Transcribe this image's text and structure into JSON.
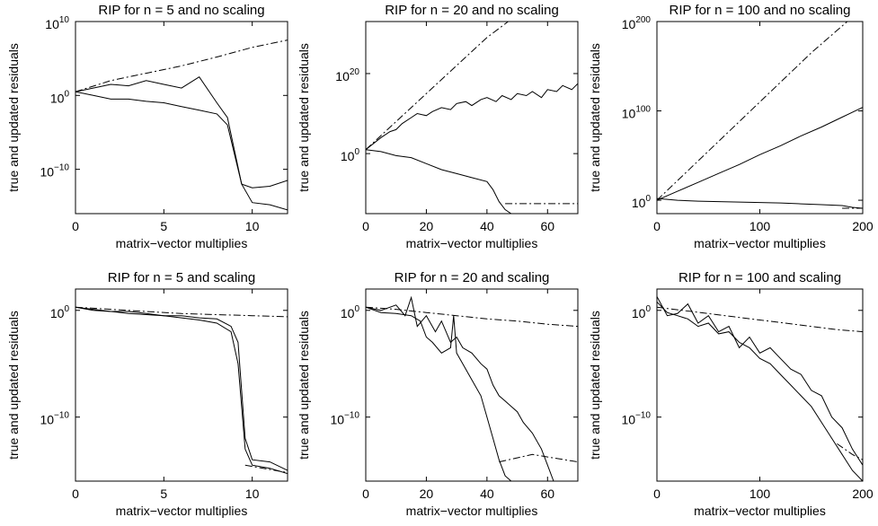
{
  "chart_data": [
    {
      "type": "line",
      "title": "RIP for n = 5 and no scaling",
      "xlabel": "matrix−vector multiplies",
      "ylabel": "true and updated residuals",
      "y_scale": "log",
      "xlim": [
        0,
        12
      ],
      "ylim_exp": [
        -16,
        10
      ],
      "x_ticks": [
        {
          "v": 0,
          "label": "0"
        },
        {
          "v": 5,
          "label": "5"
        },
        {
          "v": 10,
          "label": "10"
        }
      ],
      "y_ticks": [
        {
          "e": -10,
          "base": "10",
          "sup": "−10"
        },
        {
          "e": 0,
          "base": "10",
          "sup": "0"
        },
        {
          "e": 10,
          "base": "10",
          "sup": "10"
        }
      ],
      "grid": false,
      "series": [
        {
          "style": "dashdot",
          "x": [
            0,
            2,
            4,
            6,
            8,
            10,
            12
          ],
          "log10_y": [
            0.5,
            2.0,
            3.0,
            4.0,
            5.2,
            6.5,
            7.5
          ]
        },
        {
          "style": "solid",
          "x": [
            0,
            1,
            2,
            3,
            4,
            5,
            6,
            7,
            8,
            8.6,
            9.4,
            10,
            11,
            12
          ],
          "log10_y": [
            0.5,
            1.0,
            1.5,
            1.3,
            2.0,
            1.5,
            1.0,
            2.5,
            -1.0,
            -3.0,
            -12.0,
            -12.5,
            -12.3,
            -11.5
          ]
        },
        {
          "style": "solid",
          "x": [
            0,
            1,
            2,
            3,
            4,
            5,
            6,
            7,
            8,
            8.6,
            9.4,
            10,
            11,
            12
          ],
          "log10_y": [
            0.5,
            0.0,
            -0.5,
            -0.5,
            -0.8,
            -1.0,
            -1.5,
            -2.0,
            -2.5,
            -4.0,
            -12.0,
            -14.5,
            -14.8,
            -15.5
          ]
        }
      ]
    },
    {
      "type": "line",
      "title": "RIP for n = 20 and no scaling",
      "xlabel": "matrix−vector multiplies",
      "ylabel": "true and updated residuals",
      "y_scale": "log",
      "xlim": [
        0,
        70
      ],
      "ylim_exp": [
        -15,
        33
      ],
      "x_ticks": [
        {
          "v": 0,
          "label": "0"
        },
        {
          "v": 20,
          "label": "20"
        },
        {
          "v": 40,
          "label": "40"
        },
        {
          "v": 60,
          "label": "60"
        }
      ],
      "y_ticks": [
        {
          "e": 0,
          "base": "10",
          "sup": "0"
        },
        {
          "e": 20,
          "base": "10",
          "sup": "20"
        }
      ],
      "grid": false,
      "series": [
        {
          "style": "dashdot",
          "x": [
            0,
            10,
            20,
            30,
            40,
            47
          ],
          "log10_y": [
            1.0,
            8.0,
            15.0,
            22.0,
            29.0,
            33.0
          ]
        },
        {
          "style": "solid",
          "x": [
            0,
            5,
            8,
            10,
            12,
            15,
            17,
            20,
            22,
            25,
            28,
            30,
            33,
            35,
            38,
            40,
            43,
            45,
            48,
            50,
            53,
            55,
            58,
            60,
            63,
            65,
            68,
            70
          ],
          "log10_y": [
            1.0,
            4.0,
            5.5,
            6.0,
            7.5,
            9.0,
            10.0,
            9.5,
            10.5,
            11.5,
            11.0,
            12.5,
            13.0,
            12.0,
            13.5,
            14.0,
            13.0,
            14.5,
            13.5,
            15.0,
            14.5,
            15.5,
            14.0,
            16.0,
            15.5,
            17.0,
            16.0,
            17.5
          ]
        },
        {
          "style": "solid",
          "x": [
            0,
            5,
            10,
            15,
            20,
            25,
            30,
            35,
            40,
            42,
            44,
            46,
            48
          ],
          "log10_y": [
            1.0,
            0.5,
            -0.5,
            -1.0,
            -2.5,
            -4.0,
            -5.0,
            -6.0,
            -7.0,
            -9.0,
            -12.0,
            -14.0,
            -15.0
          ]
        },
        {
          "style": "dashdot",
          "x": [
            46,
            70
          ],
          "log10_y": [
            -12.5,
            -12.5
          ]
        }
      ]
    },
    {
      "type": "line",
      "title": "RIP for n = 100 and no scaling",
      "xlabel": "matrix−vector multiplies",
      "ylabel": "true and updated residuals",
      "y_scale": "log",
      "xlim": [
        0,
        200
      ],
      "ylim_exp": [
        -15,
        200
      ],
      "x_ticks": [
        {
          "v": 0,
          "label": "0"
        },
        {
          "v": 100,
          "label": "100"
        },
        {
          "v": 200,
          "label": "200"
        }
      ],
      "y_ticks": [
        {
          "e": 0,
          "base": "10",
          "sup": "0"
        },
        {
          "e": 100,
          "base": "10",
          "sup": "100"
        },
        {
          "e": 200,
          "base": "10",
          "sup": "200"
        }
      ],
      "grid": false,
      "series": [
        {
          "style": "dashdot",
          "x": [
            0,
            50,
            100,
            150,
            185
          ],
          "log10_y": [
            0,
            55,
            110,
            165,
            200
          ]
        },
        {
          "style": "solid",
          "x": [
            0,
            20,
            40,
            60,
            80,
            100,
            120,
            140,
            160,
            180,
            200
          ],
          "log10_y": [
            0,
            10,
            20,
            30,
            40,
            51,
            61,
            72,
            82,
            93,
            104
          ]
        },
        {
          "style": "solid",
          "x": [
            0,
            20,
            40,
            60,
            80,
            100,
            120,
            140,
            160,
            180,
            190,
            200
          ],
          "log10_y": [
            2,
            0,
            -1,
            -1.5,
            -2,
            -2.5,
            -3,
            -4,
            -5,
            -6,
            -8,
            -9
          ]
        },
        {
          "style": "dashdot",
          "x": [
            180,
            200
          ],
          "log10_y": [
            -9,
            -9
          ]
        }
      ]
    },
    {
      "type": "line",
      "title": "RIP for n = 5 and scaling",
      "xlabel": "matrix−vector multiplies",
      "ylabel": "true and updated residuals",
      "y_scale": "log",
      "xlim": [
        0,
        12
      ],
      "ylim_exp": [
        -16,
        2
      ],
      "x_ticks": [
        {
          "v": 0,
          "label": "0"
        },
        {
          "v": 5,
          "label": "5"
        },
        {
          "v": 10,
          "label": "10"
        }
      ],
      "y_ticks": [
        {
          "e": -10,
          "base": "10",
          "sup": "−10"
        },
        {
          "e": 0,
          "base": "10",
          "sup": "0"
        }
      ],
      "grid": false,
      "series": [
        {
          "style": "dashdot",
          "x": [
            0,
            2,
            4,
            6,
            8,
            10,
            12
          ],
          "log10_y": [
            0.3,
            0.1,
            -0.1,
            -0.3,
            -0.4,
            -0.5,
            -0.6
          ]
        },
        {
          "style": "solid",
          "x": [
            0,
            1,
            2,
            3,
            4,
            5,
            6,
            7,
            8,
            8.8,
            9.2,
            9.6,
            10,
            11,
            12
          ],
          "log10_y": [
            0.3,
            0.1,
            -0.1,
            -0.1,
            -0.3,
            -0.5,
            -0.5,
            -0.7,
            -0.8,
            -1.5,
            -3.0,
            -12.0,
            -14.0,
            -14.2,
            -15.0
          ]
        },
        {
          "style": "solid",
          "x": [
            0,
            1,
            2,
            3,
            4,
            5,
            6,
            7,
            8,
            8.8,
            9.2,
            9.6,
            10,
            11,
            12
          ],
          "log10_y": [
            0.3,
            0.0,
            -0.1,
            -0.3,
            -0.4,
            -0.5,
            -0.7,
            -0.9,
            -1.2,
            -2.0,
            -5.0,
            -13.0,
            -14.5,
            -14.8,
            -15.3
          ]
        },
        {
          "style": "dashdot",
          "x": [
            9.6,
            12
          ],
          "log10_y": [
            -14.5,
            -15.2
          ]
        }
      ]
    },
    {
      "type": "line",
      "title": "RIP for n = 20 and scaling",
      "xlabel": "matrix−vector multiplies",
      "ylabel": "true and updated residuals",
      "y_scale": "log",
      "xlim": [
        0,
        70
      ],
      "ylim_exp": [
        -16,
        2
      ],
      "x_ticks": [
        {
          "v": 0,
          "label": "0"
        },
        {
          "v": 20,
          "label": "20"
        },
        {
          "v": 40,
          "label": "40"
        },
        {
          "v": 60,
          "label": "60"
        }
      ],
      "y_ticks": [
        {
          "e": -10,
          "base": "10",
          "sup": "−10"
        },
        {
          "e": 0,
          "base": "10",
          "sup": "0"
        }
      ],
      "grid": false,
      "series": [
        {
          "style": "dashdot",
          "x": [
            0,
            10,
            20,
            30,
            40,
            50,
            60,
            70
          ],
          "log10_y": [
            0.3,
            0.1,
            -0.2,
            -0.5,
            -0.8,
            -1.0,
            -1.3,
            -1.5
          ]
        },
        {
          "style": "solid",
          "x": [
            0,
            5,
            10,
            13,
            15,
            17,
            20,
            23,
            25,
            28,
            30,
            32,
            35,
            38,
            40,
            42,
            44,
            46,
            48,
            50,
            52,
            55,
            58,
            60,
            62
          ],
          "log10_y": [
            0.3,
            0.0,
            0.5,
            -0.5,
            1.2,
            -1.5,
            -0.5,
            -2.0,
            -1.0,
            -3.0,
            -2.5,
            -3.5,
            -4.0,
            -5.0,
            -5.5,
            -7.0,
            -8.0,
            -8.5,
            -9.0,
            -9.5,
            -10.5,
            -11.5,
            -13.0,
            -14.5,
            -16.0
          ]
        },
        {
          "style": "solid",
          "x": [
            0,
            5,
            10,
            15,
            18,
            20,
            22,
            25,
            28,
            29,
            30,
            32,
            35,
            38,
            40,
            42,
            44,
            46,
            48
          ],
          "log10_y": [
            0.3,
            -0.2,
            -0.3,
            -0.5,
            -1.0,
            -2.5,
            -3.0,
            -4.0,
            -3.5,
            -0.5,
            -4.0,
            -5.0,
            -6.5,
            -8.0,
            -10.0,
            -12.0,
            -14.0,
            -15.5,
            -16.0
          ]
        },
        {
          "style": "dashdot",
          "x": [
            44,
            55,
            70
          ],
          "log10_y": [
            -14.2,
            -13.5,
            -14.2
          ]
        }
      ]
    },
    {
      "type": "line",
      "title": "RIP for n = 100 and scaling",
      "xlabel": "matrix−vector multiplies",
      "ylabel": "true and updated residuals",
      "y_scale": "log",
      "xlim": [
        0,
        200
      ],
      "ylim_exp": [
        -16,
        2
      ],
      "x_ticks": [
        {
          "v": 0,
          "label": "0"
        },
        {
          "v": 100,
          "label": "100"
        },
        {
          "v": 200,
          "label": "200"
        }
      ],
      "y_ticks": [
        {
          "e": -10,
          "base": "10",
          "sup": "−10"
        },
        {
          "e": 0,
          "base": "10",
          "sup": "0"
        }
      ],
      "grid": false,
      "series": [
        {
          "style": "dashdot",
          "x": [
            0,
            25,
            50,
            75,
            100,
            125,
            150,
            175,
            200
          ],
          "log10_y": [
            0.3,
            0.0,
            -0.3,
            -0.6,
            -0.9,
            -1.2,
            -1.5,
            -1.8,
            -2.0
          ]
        },
        {
          "style": "solid",
          "x": [
            0,
            10,
            20,
            30,
            40,
            50,
            60,
            70,
            80,
            90,
            100,
            110,
            120,
            130,
            140,
            150,
            160,
            170,
            180,
            190,
            200
          ],
          "log10_y": [
            1.3,
            -0.5,
            -0.3,
            0.6,
            -1.2,
            -0.5,
            -2.0,
            -1.5,
            -3.5,
            -2.5,
            -4.0,
            -3.5,
            -4.5,
            -5.5,
            -6.0,
            -7.5,
            -8.0,
            -10.0,
            -11.0,
            -13.0,
            -14.5
          ]
        },
        {
          "style": "solid",
          "x": [
            0,
            10,
            20,
            30,
            40,
            50,
            60,
            70,
            80,
            90,
            100,
            110,
            120,
            130,
            140,
            150,
            160,
            170,
            180,
            190,
            200
          ],
          "log10_y": [
            0.8,
            -0.2,
            -0.5,
            -0.8,
            -1.5,
            -1.2,
            -2.2,
            -2.0,
            -3.0,
            -3.5,
            -4.5,
            -5.0,
            -6.0,
            -7.0,
            -8.0,
            -9.0,
            -10.5,
            -12.0,
            -13.5,
            -15.0,
            -16.0
          ]
        },
        {
          "style": "dashdot",
          "x": [
            175,
            190,
            200
          ],
          "log10_y": [
            -12.5,
            -13.5,
            -14.0
          ]
        }
      ]
    }
  ]
}
